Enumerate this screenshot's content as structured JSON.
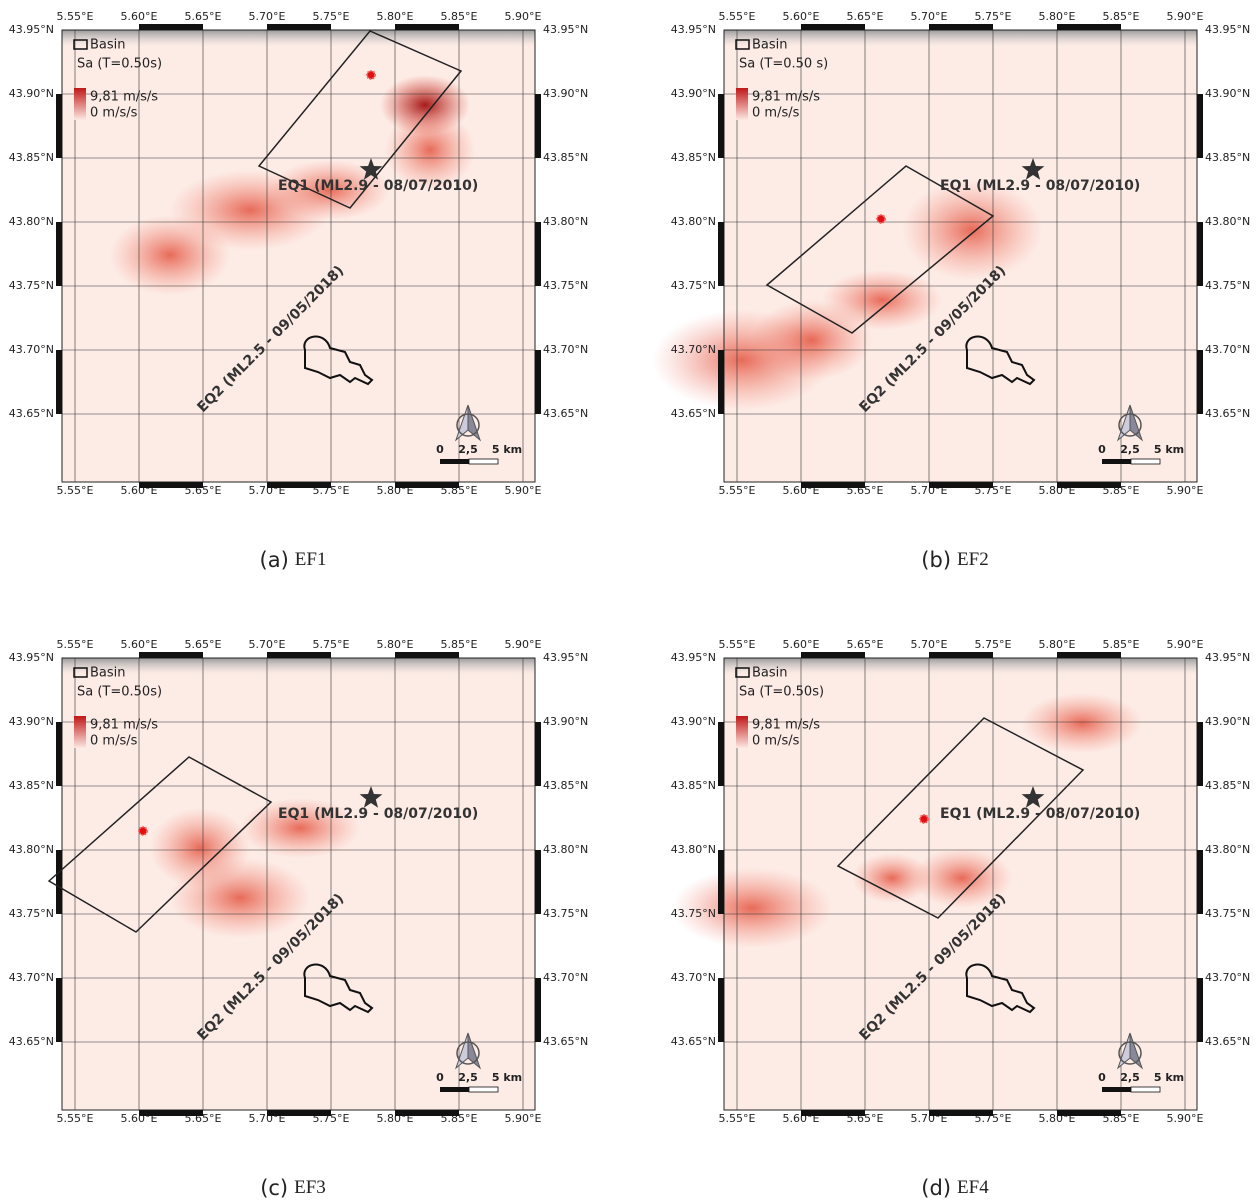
{
  "lon_ticks": [
    "5.55°E",
    "5.60°E",
    "5.65°E",
    "5.70°E",
    "5.75°E",
    "5.80°E",
    "5.85°E",
    "5.90°E"
  ],
  "lat_ticks": [
    "43.95°N",
    "43.90°N",
    "43.85°N",
    "43.80°N",
    "43.75°N",
    "43.70°N",
    "43.65°N"
  ],
  "legend": {
    "basin": "Basin",
    "max": "9,81 m/s/s",
    "min": "0 m/s/s"
  },
  "annotations": {
    "eq1": "EQ1 (ML2.9 - 08/07/2010)",
    "eq2": "EQ2 (ML2.5 - 09/05/2018)"
  },
  "scale_bar": [
    "0",
    "2,5",
    "5 km"
  ],
  "panels": [
    {
      "label": "(a)",
      "name": "EF1",
      "legend_title": "Sa (T=0.50s)"
    },
    {
      "label": "(b)",
      "name": "EF2",
      "legend_title": "Sa (T=0.50 s)"
    },
    {
      "label": "(c)",
      "name": "EF3",
      "legend_title": "Sa (T=0.50s)"
    },
    {
      "label": "(d)",
      "name": "EF4",
      "legend_title": "Sa (T=0.50s)"
    }
  ]
}
